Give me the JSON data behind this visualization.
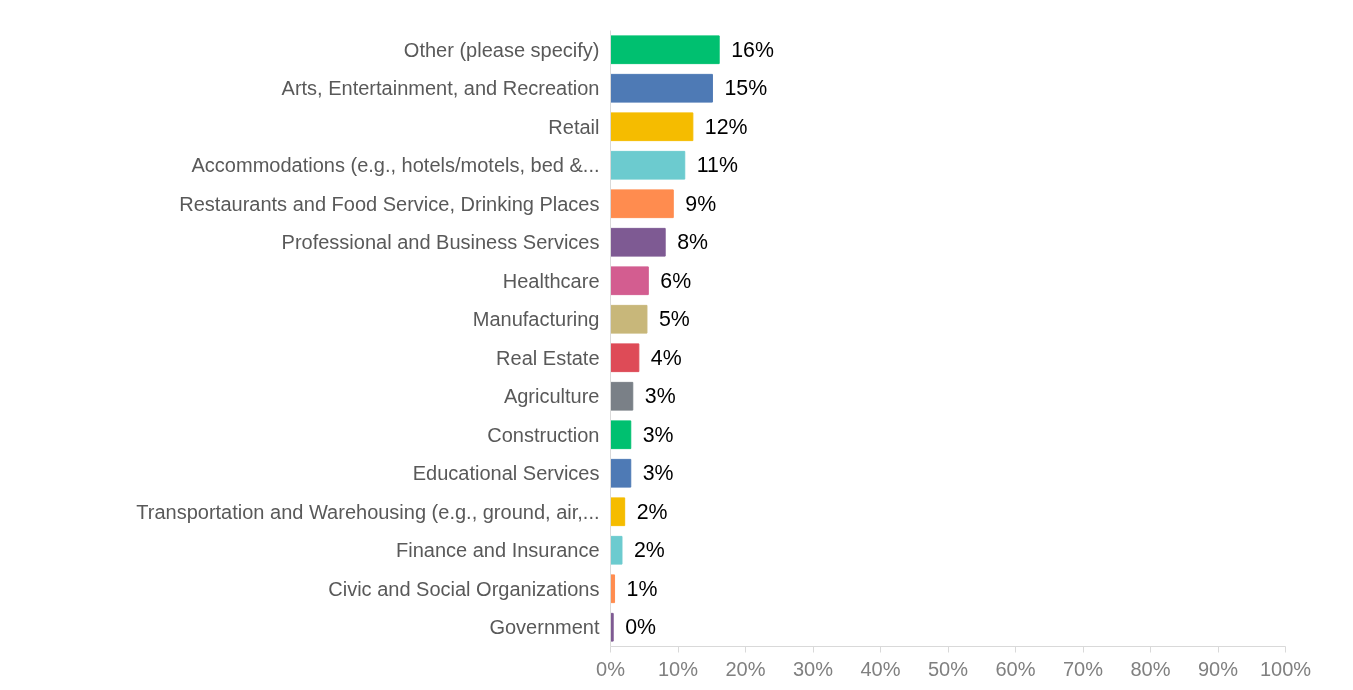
{
  "chart_data": {
    "type": "bar",
    "orientation": "horizontal",
    "categories": [
      "Other (please specify)",
      "Arts, Entertainment, and Recreation",
      "Retail",
      "Accommodations (e.g., hotels/motels, bed &...",
      "Restaurants and Food Service, Drinking Places",
      "Professional and Business Services",
      "Healthcare",
      "Manufacturing",
      "Real Estate",
      "Agriculture",
      "Construction",
      "Educational Services",
      "Transportation and Warehousing (e.g., ground, air,...",
      "Finance and Insurance",
      "Civic and Social Organizations",
      "Government"
    ],
    "values": [
      16.1,
      15.1,
      12.2,
      11.0,
      9.3,
      8.1,
      5.6,
      5.4,
      4.2,
      3.3,
      3.0,
      3.0,
      2.1,
      1.7,
      0.6,
      0.4
    ],
    "value_labels": [
      "16%",
      "15%",
      "12%",
      "11%",
      "9%",
      "8%",
      "6%",
      "5%",
      "4%",
      "3%",
      "3%",
      "3%",
      "2%",
      "2%",
      "1%",
      "0%"
    ],
    "colors": [
      "#00c070",
      "#4e7ab5",
      "#f5bc00",
      "#6ccbcf",
      "#ff8c4f",
      "#7e5a93",
      "#d35d90",
      "#c8b77a",
      "#de4b57",
      "#7a8087",
      "#00c070",
      "#4e7ab5",
      "#f5bc00",
      "#6ccbcf",
      "#ff8c4f",
      "#7e5a93"
    ],
    "xlim": [
      0,
      100
    ],
    "xticks": [
      {
        "value": 0,
        "label": "0%"
      },
      {
        "value": 10,
        "label": "10%"
      },
      {
        "value": 20,
        "label": "20%"
      },
      {
        "value": 30,
        "label": "30%"
      },
      {
        "value": 40,
        "label": "40%"
      },
      {
        "value": 50,
        "label": "50%"
      },
      {
        "value": 60,
        "label": "60%"
      },
      {
        "value": 70,
        "label": "70%"
      },
      {
        "value": 80,
        "label": "80%"
      },
      {
        "value": 90,
        "label": "90%"
      },
      {
        "value": 100,
        "label": "100%"
      }
    ],
    "grid": false
  }
}
